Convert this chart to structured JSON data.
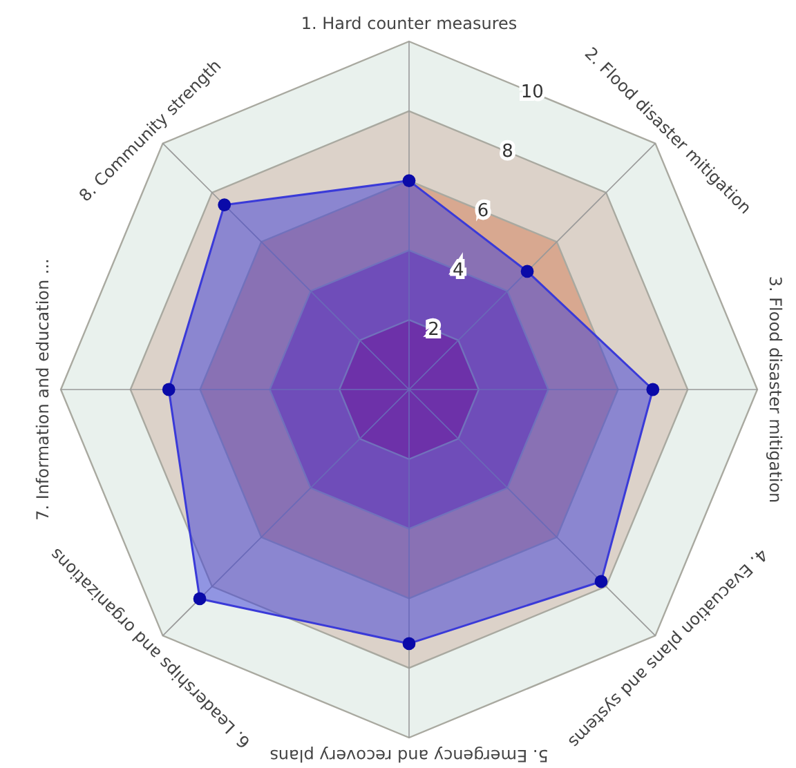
{
  "chart_data": {
    "type": "radar",
    "categories": [
      "1. Hard counter measures",
      "2. Flood disaster mitigation",
      "3. Flood disaster mitigation",
      "4. Evacuation plans and systems",
      "5. Emergency and recovery plans",
      "6. Leaderships and organizations",
      "7. Information and education ...",
      "8. Community strength"
    ],
    "series": [
      {
        "color": "#3a3ad8",
        "values": [
          6,
          4.8,
          7,
          7.8,
          7.3,
          8.5,
          6.9,
          7.5
        ]
      }
    ],
    "ylim": [
      0,
      10
    ],
    "yticks": [
      2,
      4,
      6,
      8,
      10
    ],
    "marker": "circle",
    "grid": true
  }
}
